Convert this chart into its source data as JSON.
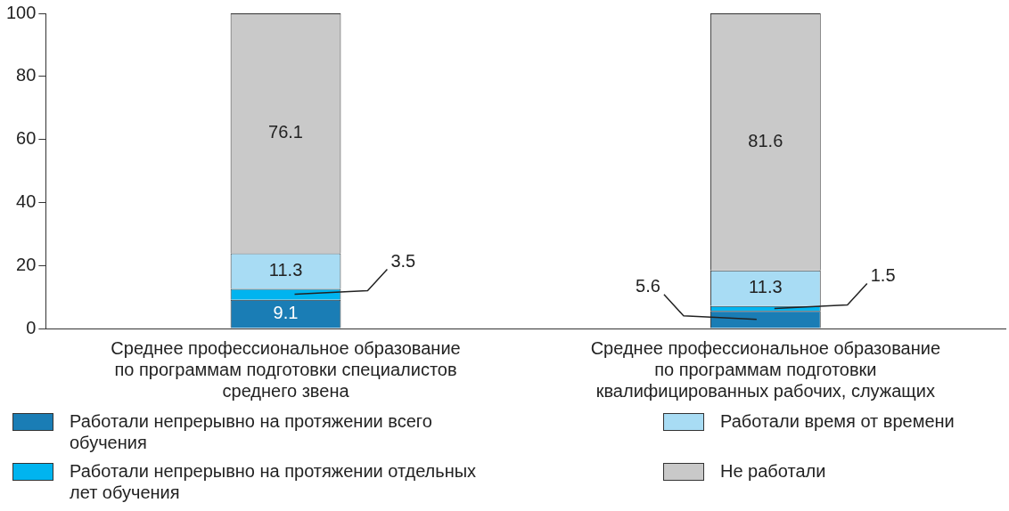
{
  "chart_data": {
    "type": "bar",
    "stacked": true,
    "data_labels": true,
    "legend": "bottom",
    "grid": false,
    "categories": [
      "Среднее профессиональное образование по программам подготовки специалистов среднего звена",
      "Среднее профессиональное образование по программам подготовки квалифицированных рабочих, служащих"
    ],
    "ylim": [
      0,
      100
    ],
    "yticks": [
      0,
      20,
      40,
      60,
      80,
      100
    ],
    "series": [
      {
        "name": "Работали непрерывно на протяжении всего обучения",
        "color": "#1a7db5",
        "values": [
          9.1,
          5.6
        ]
      },
      {
        "name": "Работали непрерывно на протяжении отдельных лет обучения",
        "color": "#00b4ef",
        "values": [
          3.5,
          1.5
        ]
      },
      {
        "name": "Работали время от времени",
        "color": "#a8dcf4",
        "values": [
          11.3,
          11.3
        ]
      },
      {
        "name": "Не работали",
        "color": "#c9c9c9",
        "values": [
          76.1,
          81.6
        ]
      }
    ]
  }
}
